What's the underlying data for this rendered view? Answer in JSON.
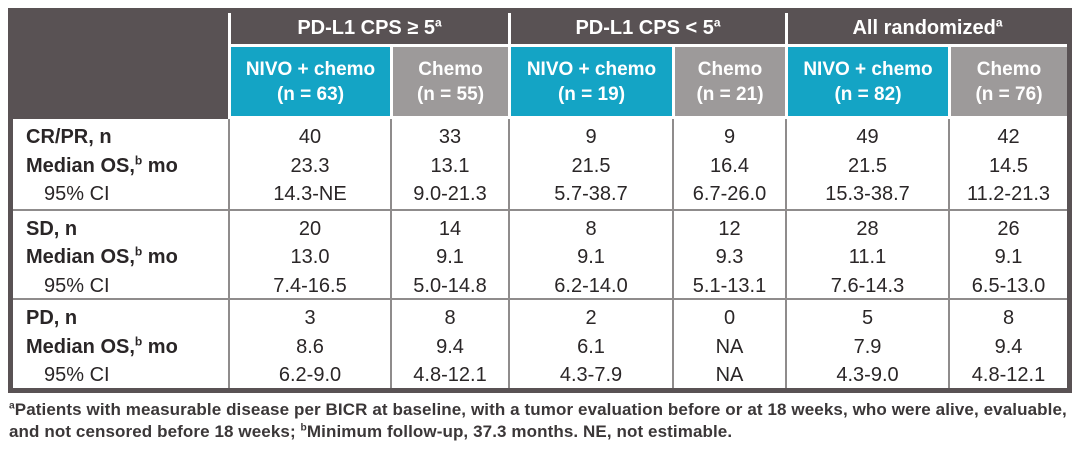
{
  "colors": {
    "dark": "#595254",
    "teal": "#14a4c5",
    "chemo_gray": "#9d9a9a",
    "grid": "#8f8c8c",
    "text": "#2a2627",
    "footnote_text": "#3b3738"
  },
  "header": {
    "groups": [
      {
        "label": "PD-L1 CPS ≥ 5",
        "sup": "a"
      },
      {
        "label": "PD-L1 CPS < 5",
        "sup": "a"
      },
      {
        "label": "All randomized",
        "sup": "a"
      }
    ],
    "arms": [
      {
        "drug": "NIVO + chemo",
        "n": "(n = 63)"
      },
      {
        "drug": "Chemo",
        "n": "(n = 55)"
      },
      {
        "drug": "NIVO + chemo",
        "n": "(n = 19)"
      },
      {
        "drug": "Chemo",
        "n": "(n = 21)"
      },
      {
        "drug": "NIVO + chemo",
        "n": "(n = 82)"
      },
      {
        "drug": "Chemo",
        "n": "(n = 76)"
      }
    ]
  },
  "body": {
    "median_label": {
      "pre": "Median OS,",
      "sup": "b",
      "post": " mo"
    },
    "ci_label": "95% CI",
    "groups": [
      {
        "name_label": "CR/PR, n",
        "cells": [
          [
            "40",
            "23.3",
            "14.3-NE"
          ],
          [
            "33",
            "13.1",
            "9.0-21.3"
          ],
          [
            "9",
            "21.5",
            "5.7-38.7"
          ],
          [
            "9",
            "16.4",
            "6.7-26.0"
          ],
          [
            "49",
            "21.5",
            "15.3-38.7"
          ],
          [
            "42",
            "14.5",
            "11.2-21.3"
          ]
        ]
      },
      {
        "name_label": "SD, n",
        "cells": [
          [
            "20",
            "13.0",
            "7.4-16.5"
          ],
          [
            "14",
            "9.1",
            "5.0-14.8"
          ],
          [
            "8",
            "9.1",
            "6.2-14.0"
          ],
          [
            "12",
            "9.3",
            "5.1-13.1"
          ],
          [
            "28",
            "11.1",
            "7.6-14.3"
          ],
          [
            "26",
            "9.1",
            "6.5-13.0"
          ]
        ]
      },
      {
        "name_label": "PD, n",
        "cells": [
          [
            "3",
            "8.6",
            "6.2-9.0"
          ],
          [
            "8",
            "9.4",
            "4.8-12.1"
          ],
          [
            "2",
            "6.1",
            "4.3-7.9"
          ],
          [
            "0",
            "NA",
            "NA"
          ],
          [
            "5",
            "7.9",
            "4.3-9.0"
          ],
          [
            "8",
            "9.4",
            "4.8-12.1"
          ]
        ]
      }
    ]
  },
  "footnote": {
    "sup_a": "a",
    "part1": "Patients with measurable disease per BICR at baseline, with a tumor evaluation before or at 18 weeks, who were alive, evaluable, and not censored before 18 weeks; ",
    "sup_b": "b",
    "part2": "Minimum follow-up, 37.3 months. NE, not estimable."
  }
}
